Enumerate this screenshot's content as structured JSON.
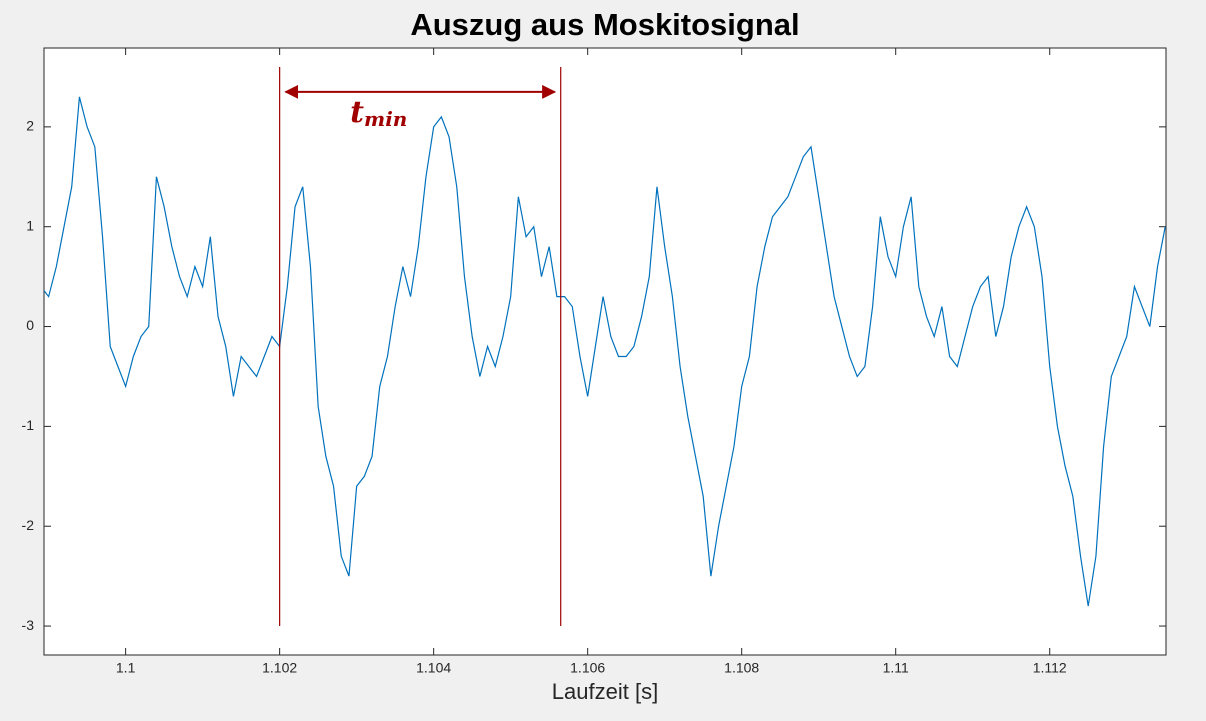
{
  "chart_data": {
    "type": "line",
    "title": "Auszug aus Moskitosignal",
    "xlabel": "Laufzeit [s]",
    "x": [
      1.0989,
      1.099,
      1.0991,
      1.0992,
      1.0993,
      1.0994,
      1.0995,
      1.0996,
      1.0997,
      1.0998,
      1.0999,
      1.1,
      1.1001,
      1.1002,
      1.1003,
      1.1004,
      1.1005,
      1.1006,
      1.1007,
      1.1008,
      1.1009,
      1.101,
      1.1011,
      1.1012,
      1.1013,
      1.1014,
      1.1015,
      1.1016,
      1.1017,
      1.1018,
      1.1019,
      1.102,
      1.1021,
      1.1022,
      1.1023,
      1.1024,
      1.1025,
      1.1026,
      1.1027,
      1.1028,
      1.1029,
      1.103,
      1.1031,
      1.1032,
      1.1033,
      1.1034,
      1.1035,
      1.1036,
      1.1037,
      1.1038,
      1.1039,
      1.104,
      1.1041,
      1.1042,
      1.1043,
      1.1044,
      1.1045,
      1.1046,
      1.1047,
      1.1048,
      1.1049,
      1.105,
      1.1051,
      1.1052,
      1.1053,
      1.1054,
      1.1055,
      1.1056,
      1.1057,
      1.1058,
      1.1059,
      1.106,
      1.1061,
      1.1062,
      1.1063,
      1.1064,
      1.1065,
      1.1066,
      1.1067,
      1.1068,
      1.1069,
      1.107,
      1.1071,
      1.1072,
      1.1073,
      1.1074,
      1.1075,
      1.1076,
      1.1077,
      1.1078,
      1.1079,
      1.108,
      1.1081,
      1.1082,
      1.1083,
      1.1084,
      1.1085,
      1.1086,
      1.1087,
      1.1088,
      1.1089,
      1.109,
      1.1091,
      1.1092,
      1.1093,
      1.1094,
      1.1095,
      1.1096,
      1.1097,
      1.1098,
      1.1099,
      1.11,
      1.1101,
      1.1102,
      1.1103,
      1.1104,
      1.1105,
      1.1106,
      1.1107,
      1.1108,
      1.1109,
      1.111,
      1.1111,
      1.1112,
      1.1113,
      1.1114,
      1.1115,
      1.1116,
      1.1117,
      1.1118,
      1.1119,
      1.112,
      1.1121,
      1.1122,
      1.1123,
      1.1124,
      1.1125,
      1.1126,
      1.1127,
      1.1128,
      1.1129,
      1.113,
      1.1131,
      1.1132,
      1.1133,
      1.1134,
      1.1135
    ],
    "series": [
      {
        "color": "#0072bd",
        "values": [
          0.4,
          0.3,
          0.6,
          1.0,
          1.4,
          2.3,
          2.0,
          1.8,
          0.9,
          -0.2,
          -0.4,
          -0.6,
          -0.3,
          -0.1,
          0.0,
          1.5,
          1.2,
          0.8,
          0.5,
          0.3,
          0.6,
          0.4,
          0.9,
          0.1,
          -0.2,
          -0.7,
          -0.3,
          -0.4,
          -0.5,
          -0.3,
          -0.1,
          -0.2,
          0.4,
          1.2,
          1.4,
          0.6,
          -0.8,
          -1.3,
          -1.6,
          -2.3,
          -2.5,
          -1.6,
          -1.5,
          -1.3,
          -0.6,
          -0.3,
          0.2,
          0.6,
          0.3,
          0.8,
          1.5,
          2.0,
          2.1,
          1.9,
          1.4,
          0.5,
          -0.1,
          -0.5,
          -0.2,
          -0.4,
          -0.1,
          0.3,
          1.3,
          0.9,
          1.0,
          0.5,
          0.8,
          0.3,
          0.3,
          0.2,
          -0.3,
          -0.7,
          -0.2,
          0.3,
          -0.1,
          -0.3,
          -0.3,
          -0.2,
          0.1,
          0.5,
          1.4,
          0.8,
          0.3,
          -0.4,
          -0.9,
          -1.3,
          -1.7,
          -2.5,
          -2.0,
          -1.6,
          -1.2,
          -0.6,
          -0.3,
          0.4,
          0.8,
          1.1,
          1.2,
          1.3,
          1.5,
          1.7,
          1.8,
          1.3,
          0.8,
          0.3,
          0.0,
          -0.3,
          -0.5,
          -0.4,
          0.2,
          1.1,
          0.7,
          0.5,
          1.0,
          1.3,
          0.4,
          0.1,
          -0.1,
          0.2,
          -0.3,
          -0.4,
          -0.1,
          0.2,
          0.4,
          0.5,
          -0.1,
          0.2,
          0.7,
          1.0,
          1.2,
          1.0,
          0.5,
          -0.4,
          -1.0,
          -1.4,
          -1.7,
          -2.3,
          -2.8,
          -2.3,
          -1.2,
          -0.5,
          -0.3,
          -0.1,
          0.4,
          0.2,
          0.0,
          0.6,
          1.0
        ]
      }
    ],
    "xlim": [
      1.09894,
      1.11351
    ],
    "xticks": [
      1.1,
      1.102,
      1.104,
      1.106,
      1.108,
      1.11,
      1.112
    ],
    "ylim": [
      -3.29,
      2.79
    ],
    "yticks": [
      -3,
      -2,
      -1,
      0,
      1,
      2
    ],
    "grid": false,
    "annotation": {
      "color": "#a00000",
      "vlines": [
        1.102,
        1.10565
      ],
      "vline_range": [
        -3.0,
        2.6
      ],
      "arrow_y": 2.35,
      "text": "t",
      "subscript": "min"
    }
  }
}
